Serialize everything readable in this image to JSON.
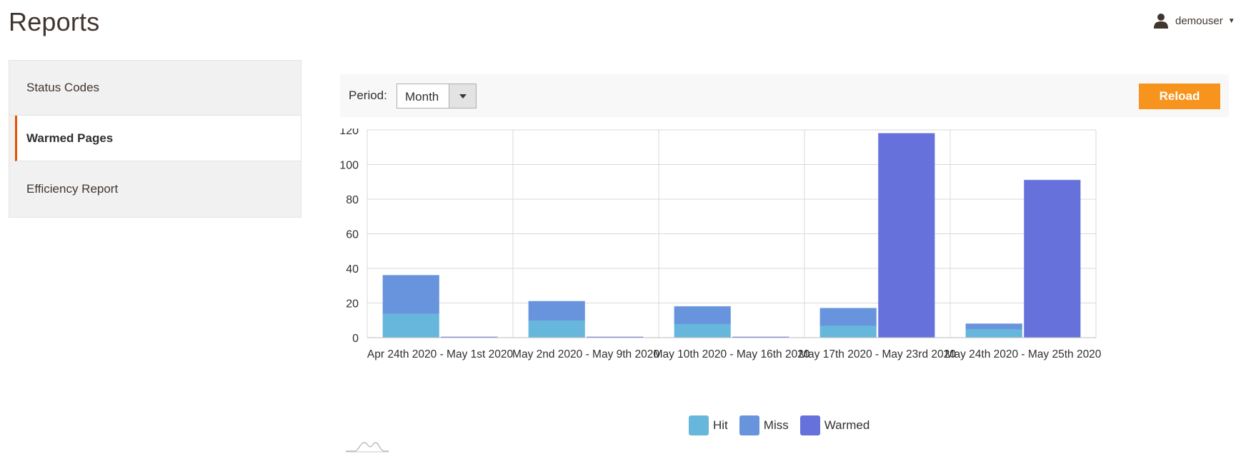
{
  "page": {
    "title": "Reports"
  },
  "user": {
    "name": "demouser",
    "icon": "user-icon"
  },
  "sidebar": {
    "items": [
      {
        "label": "Status Codes",
        "active": false
      },
      {
        "label": "Warmed Pages",
        "active": true
      },
      {
        "label": "Efficiency Report",
        "active": false
      }
    ]
  },
  "toolbar": {
    "period_label": "Period:",
    "period_value": "Month",
    "reload_label": "Reload"
  },
  "colors": {
    "accent": "#f7941d",
    "active_border": "#eb5202",
    "hit": "#67b7dc",
    "miss": "#6794dc",
    "warmed": "#6771dc"
  },
  "chart_data": {
    "type": "bar",
    "stacked": true,
    "categories": [
      "Apr 24th 2020 - May 1st 2020",
      "May 2nd 2020 - May 9th 2020",
      "May 10th 2020 - May 16th 2020",
      "May 17th 2020 - May 23rd 2020",
      "May 24th 2020 - May 25th 2020"
    ],
    "series": [
      {
        "name": "Hit",
        "stack": "a",
        "color": "#67b7dc",
        "values": [
          14,
          10,
          8,
          7,
          5
        ]
      },
      {
        "name": "Miss",
        "stack": "a",
        "color": "#6794dc",
        "values": [
          22,
          11,
          10,
          10,
          3
        ]
      },
      {
        "name": "Warmed",
        "stack": "b",
        "color": "#6771dc",
        "values": [
          0,
          0,
          0,
          118,
          91
        ]
      }
    ],
    "yticks": [
      0,
      20,
      40,
      60,
      80,
      100,
      120
    ],
    "ylim": [
      0,
      120
    ],
    "grid": true,
    "legend": "bottom"
  }
}
